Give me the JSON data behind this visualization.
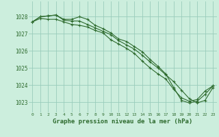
{
  "background_color": "#cceedd",
  "grid_color": "#99ccbb",
  "line_color": "#2d6a2d",
  "xlim": [
    -0.5,
    23.5
  ],
  "ylim": [
    1022.4,
    1028.9
  ],
  "yticks": [
    1023,
    1024,
    1025,
    1026,
    1027,
    1028
  ],
  "xticks": [
    0,
    1,
    2,
    3,
    4,
    5,
    6,
    7,
    8,
    9,
    10,
    11,
    12,
    13,
    14,
    15,
    16,
    17,
    18,
    19,
    20,
    21,
    22,
    23
  ],
  "xlabel": "Graphe pression niveau de la mer (hPa)",
  "series1": [
    1027.7,
    1027.9,
    1027.85,
    1027.85,
    1027.7,
    1027.55,
    1027.5,
    1027.4,
    1027.2,
    1027.05,
    1026.65,
    1026.4,
    1026.15,
    1025.85,
    1025.4,
    1025.0,
    1024.65,
    1024.35,
    1023.75,
    1023.25,
    1023.05,
    1023.15,
    1023.65,
    1023.95
  ],
  "series2": [
    1027.7,
    1028.0,
    1028.05,
    1028.1,
    1027.85,
    1027.85,
    1028.0,
    1027.85,
    1027.5,
    1027.3,
    1027.05,
    1026.7,
    1026.55,
    1026.25,
    1025.95,
    1025.5,
    1025.1,
    1024.65,
    1023.85,
    1023.1,
    1022.95,
    1023.05,
    1023.45,
    1023.95
  ],
  "series3": [
    1027.7,
    1028.0,
    1028.05,
    1028.1,
    1027.8,
    1027.75,
    1027.75,
    1027.55,
    1027.35,
    1027.15,
    1026.95,
    1026.6,
    1026.35,
    1026.1,
    1025.75,
    1025.35,
    1025.0,
    1024.6,
    1024.2,
    1023.7,
    1023.2,
    1022.95,
    1023.1,
    1023.85
  ]
}
